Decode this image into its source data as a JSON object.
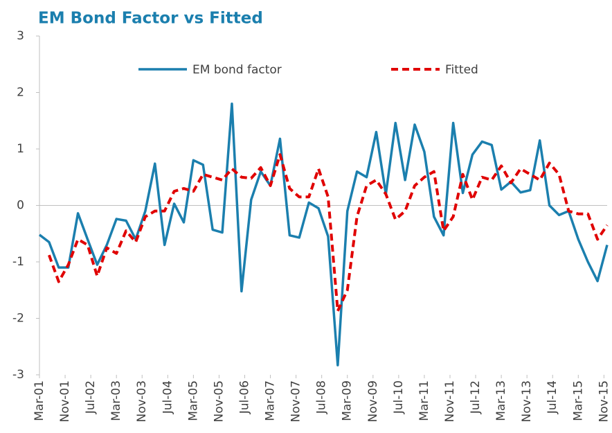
{
  "chart_data": {
    "type": "line",
    "title": "EM Bond Factor vs Fitted",
    "x": [
      "2001-03",
      "2001-06",
      "2001-09",
      "2001-12",
      "2002-03",
      "2002-06",
      "2002-09",
      "2002-12",
      "2003-03",
      "2003-06",
      "2003-09",
      "2003-12",
      "2004-03",
      "2004-06",
      "2004-09",
      "2004-12",
      "2005-03",
      "2005-06",
      "2005-09",
      "2005-12",
      "2006-03",
      "2006-06",
      "2006-09",
      "2006-12",
      "2007-03",
      "2007-06",
      "2007-09",
      "2007-12",
      "2008-03",
      "2008-06",
      "2008-09",
      "2008-12",
      "2009-03",
      "2009-06",
      "2009-09",
      "2009-12",
      "2010-03",
      "2010-06",
      "2010-09",
      "2010-12",
      "2011-03",
      "2011-06",
      "2011-09",
      "2011-12",
      "2012-03",
      "2012-06",
      "2012-09",
      "2012-12",
      "2013-03",
      "2013-06",
      "2013-09",
      "2013-12",
      "2014-03",
      "2014-06",
      "2014-09",
      "2014-12",
      "2015-03",
      "2015-06",
      "2015-09",
      "2015-12"
    ],
    "xlim": [
      "2001-03",
      "2015-12"
    ],
    "xticks": [
      {
        "value": "2001-03",
        "label": "Mar-01"
      },
      {
        "value": "2001-11",
        "label": "Nov-01"
      },
      {
        "value": "2002-07",
        "label": "Jul-02"
      },
      {
        "value": "2003-03",
        "label": "Mar-03"
      },
      {
        "value": "2003-11",
        "label": "Nov-03"
      },
      {
        "value": "2004-07",
        "label": "Jul-04"
      },
      {
        "value": "2005-03",
        "label": "Mar-05"
      },
      {
        "value": "2005-11",
        "label": "Nov-05"
      },
      {
        "value": "2006-07",
        "label": "Jul-06"
      },
      {
        "value": "2007-03",
        "label": "Mar-07"
      },
      {
        "value": "2007-11",
        "label": "Nov-07"
      },
      {
        "value": "2008-07",
        "label": "Jul-08"
      },
      {
        "value": "2009-03",
        "label": "Mar-09"
      },
      {
        "value": "2009-11",
        "label": "Nov-09"
      },
      {
        "value": "2010-07",
        "label": "Jul-10"
      },
      {
        "value": "2011-03",
        "label": "Mar-11"
      },
      {
        "value": "2011-11",
        "label": "Nov-11"
      },
      {
        "value": "2012-07",
        "label": "Jul-12"
      },
      {
        "value": "2013-03",
        "label": "Mar-13"
      },
      {
        "value": "2013-11",
        "label": "Nov-13"
      },
      {
        "value": "2014-07",
        "label": "Jul-14"
      },
      {
        "value": "2015-03",
        "label": "Mar-15"
      },
      {
        "value": "2015-11",
        "label": "Nov-15"
      }
    ],
    "ylim": [
      -3,
      3
    ],
    "yticks": [
      -3,
      -2,
      -1,
      0,
      1,
      2,
      3
    ],
    "legend": "top",
    "series": [
      {
        "name": "EM bond factor",
        "color": "#1b7fae",
        "dash": false,
        "values": [
          -0.52,
          -0.65,
          -1.1,
          -1.1,
          -0.14,
          -0.6,
          -1.05,
          -0.7,
          -0.24,
          -0.27,
          -0.6,
          -0.1,
          0.74,
          -0.7,
          0.03,
          -0.3,
          0.8,
          0.72,
          -0.43,
          -0.48,
          1.8,
          -1.52,
          0.1,
          0.6,
          0.35,
          1.18,
          -0.53,
          -0.57,
          0.05,
          -0.05,
          -0.55,
          -2.83,
          -0.1,
          0.6,
          0.5,
          1.3,
          0.2,
          1.46,
          0.45,
          1.43,
          0.95,
          -0.2,
          -0.53,
          1.46,
          0.22,
          0.9,
          1.13,
          1.07,
          0.28,
          0.42,
          0.23,
          0.27,
          1.15,
          0.0,
          -0.17,
          -0.1,
          -0.6,
          -1.0,
          -1.34,
          -0.7
        ]
      },
      {
        "name": "Fitted",
        "color": "#e00000",
        "dash": true,
        "values": [
          null,
          -0.88,
          -1.35,
          -1.05,
          -0.6,
          -0.7,
          -1.25,
          -0.75,
          -0.85,
          -0.45,
          -0.65,
          -0.2,
          -0.1,
          -0.1,
          0.25,
          0.3,
          0.25,
          0.55,
          0.5,
          0.45,
          0.65,
          0.5,
          0.48,
          0.67,
          0.35,
          0.9,
          0.3,
          0.15,
          0.15,
          0.65,
          0.15,
          -1.87,
          -1.5,
          -0.2,
          0.35,
          0.45,
          0.2,
          -0.25,
          -0.1,
          0.35,
          0.5,
          0.6,
          -0.45,
          -0.2,
          0.55,
          0.1,
          0.5,
          0.45,
          0.7,
          0.4,
          0.65,
          0.55,
          0.45,
          0.75,
          0.55,
          -0.1,
          -0.15,
          -0.15,
          -0.6,
          -0.35
        ]
      }
    ]
  }
}
